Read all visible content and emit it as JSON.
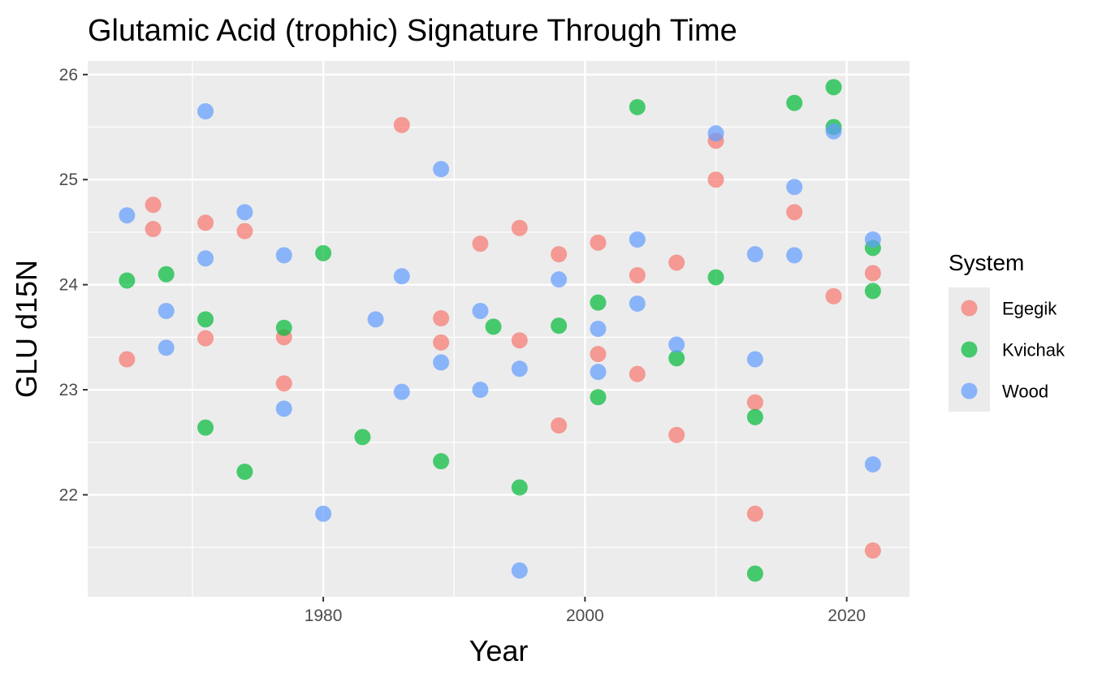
{
  "chart_data": {
    "type": "scatter",
    "title": "Glutamic Acid (trophic) Signature Through Time",
    "xlabel": "Year",
    "ylabel": "GLU d15N",
    "xlim": [
      1962,
      2024.8
    ],
    "ylim": [
      21.03,
      26.13
    ],
    "x_ticks": [
      1980,
      2000,
      2020
    ],
    "y_ticks": [
      22,
      23,
      24,
      25,
      26
    ],
    "x_tick_labels": [
      "1980",
      "2000",
      "2020"
    ],
    "y_tick_labels": [
      "22",
      "23",
      "24",
      "25",
      "26"
    ],
    "grid": true,
    "legend": {
      "title": "System",
      "position": "right"
    },
    "point_opacity": 0.7,
    "series": [
      {
        "name": "Egegik",
        "color": "#F8766D",
        "points": [
          {
            "x": 1965,
            "y": 23.29
          },
          {
            "x": 1967,
            "y": 24.76
          },
          {
            "x": 1967,
            "y": 24.53
          },
          {
            "x": 1971,
            "y": 24.59
          },
          {
            "x": 1971,
            "y": 23.49
          },
          {
            "x": 1974,
            "y": 24.51
          },
          {
            "x": 1977,
            "y": 23.5
          },
          {
            "x": 1977,
            "y": 23.06
          },
          {
            "x": 1986,
            "y": 25.52
          },
          {
            "x": 1989,
            "y": 23.68
          },
          {
            "x": 1989,
            "y": 23.45
          },
          {
            "x": 1992,
            "y": 24.39
          },
          {
            "x": 1995,
            "y": 24.54
          },
          {
            "x": 1995,
            "y": 23.47
          },
          {
            "x": 1998,
            "y": 24.29
          },
          {
            "x": 1998,
            "y": 22.66
          },
          {
            "x": 2001,
            "y": 24.4
          },
          {
            "x": 2001,
            "y": 23.34
          },
          {
            "x": 2004,
            "y": 24.09
          },
          {
            "x": 2004,
            "y": 23.15
          },
          {
            "x": 2007,
            "y": 24.21
          },
          {
            "x": 2007,
            "y": 22.57
          },
          {
            "x": 2010,
            "y": 25.37
          },
          {
            "x": 2010,
            "y": 25.0
          },
          {
            "x": 2013,
            "y": 22.88
          },
          {
            "x": 2013,
            "y": 21.82
          },
          {
            "x": 2016,
            "y": 24.69
          },
          {
            "x": 2019,
            "y": 23.89
          },
          {
            "x": 2022,
            "y": 24.11
          },
          {
            "x": 2022,
            "y": 21.47
          }
        ]
      },
      {
        "name": "Kvichak",
        "color": "#00BA38",
        "points": [
          {
            "x": 1965,
            "y": 24.04
          },
          {
            "x": 1968,
            "y": 24.1
          },
          {
            "x": 1971,
            "y": 23.67
          },
          {
            "x": 1971,
            "y": 22.64
          },
          {
            "x": 1974,
            "y": 22.22
          },
          {
            "x": 1977,
            "y": 23.59
          },
          {
            "x": 1980,
            "y": 24.3
          },
          {
            "x": 1983,
            "y": 22.55
          },
          {
            "x": 1989,
            "y": 22.32
          },
          {
            "x": 1993,
            "y": 23.6
          },
          {
            "x": 1995,
            "y": 22.07
          },
          {
            "x": 1998,
            "y": 23.61
          },
          {
            "x": 2001,
            "y": 23.83
          },
          {
            "x": 2001,
            "y": 22.93
          },
          {
            "x": 2004,
            "y": 25.69
          },
          {
            "x": 2007,
            "y": 23.3
          },
          {
            "x": 2010,
            "y": 24.07
          },
          {
            "x": 2013,
            "y": 22.74
          },
          {
            "x": 2013,
            "y": 21.25
          },
          {
            "x": 2016,
            "y": 25.73
          },
          {
            "x": 2019,
            "y": 25.88
          },
          {
            "x": 2019,
            "y": 25.5
          },
          {
            "x": 2022,
            "y": 24.35
          },
          {
            "x": 2022,
            "y": 23.94
          }
        ]
      },
      {
        "name": "Wood",
        "color": "#619CFF",
        "points": [
          {
            "x": 1965,
            "y": 24.66
          },
          {
            "x": 1968,
            "y": 23.75
          },
          {
            "x": 1968,
            "y": 23.4
          },
          {
            "x": 1971,
            "y": 25.65
          },
          {
            "x": 1971,
            "y": 24.25
          },
          {
            "x": 1974,
            "y": 24.69
          },
          {
            "x": 1977,
            "y": 24.28
          },
          {
            "x": 1977,
            "y": 22.82
          },
          {
            "x": 1980,
            "y": 21.82
          },
          {
            "x": 1984,
            "y": 23.67
          },
          {
            "x": 1986,
            "y": 24.08
          },
          {
            "x": 1986,
            "y": 22.98
          },
          {
            "x": 1989,
            "y": 25.1
          },
          {
            "x": 1989,
            "y": 23.26
          },
          {
            "x": 1992,
            "y": 23.75
          },
          {
            "x": 1992,
            "y": 23.0
          },
          {
            "x": 1995,
            "y": 23.2
          },
          {
            "x": 1995,
            "y": 21.28
          },
          {
            "x": 1998,
            "y": 24.05
          },
          {
            "x": 2001,
            "y": 23.58
          },
          {
            "x": 2001,
            "y": 23.17
          },
          {
            "x": 2004,
            "y": 24.43
          },
          {
            "x": 2004,
            "y": 23.82
          },
          {
            "x": 2007,
            "y": 23.43
          },
          {
            "x": 2010,
            "y": 25.44
          },
          {
            "x": 2013,
            "y": 24.29
          },
          {
            "x": 2013,
            "y": 23.29
          },
          {
            "x": 2016,
            "y": 24.93
          },
          {
            "x": 2016,
            "y": 24.28
          },
          {
            "x": 2019,
            "y": 25.46
          },
          {
            "x": 2022,
            "y": 24.43
          },
          {
            "x": 2022,
            "y": 22.29
          }
        ]
      }
    ]
  }
}
